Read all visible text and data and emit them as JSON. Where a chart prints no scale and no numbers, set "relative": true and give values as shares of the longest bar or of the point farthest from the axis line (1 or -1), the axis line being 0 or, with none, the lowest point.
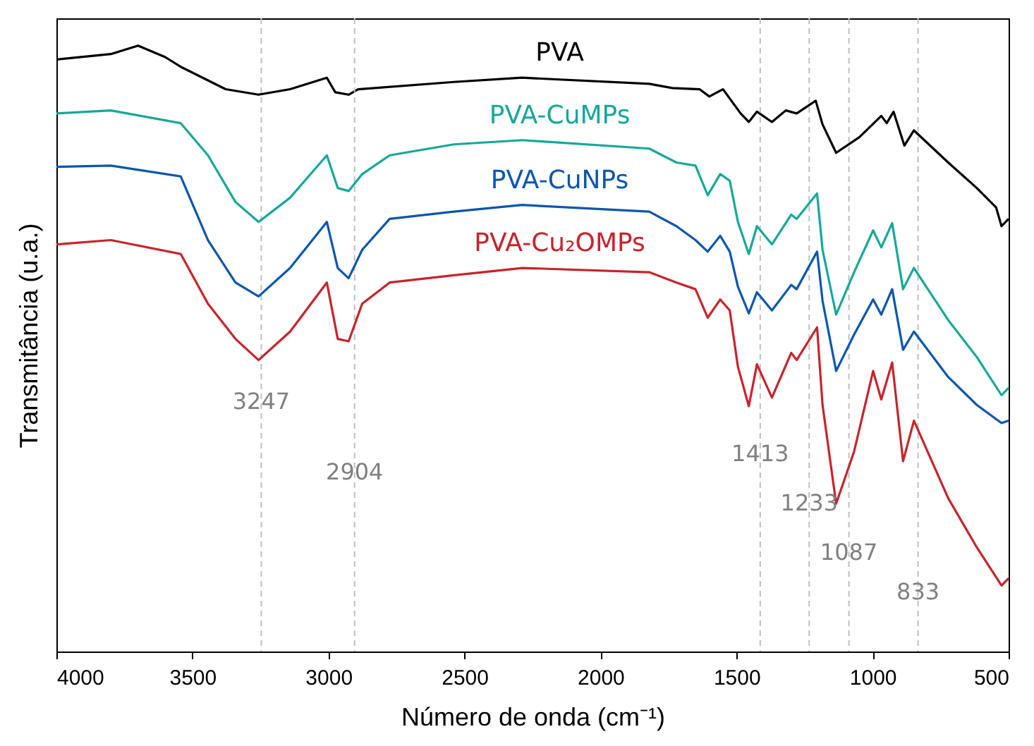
{
  "chart_data": {
    "type": "line",
    "xlabel": "Número de onda (cm⁻¹)",
    "ylabel": "Transmitância (u.a.)",
    "relative": true,
    "xlim": [
      4000,
      500
    ],
    "xticks": [
      4000,
      3500,
      3000,
      2500,
      2000,
      1500,
      1000,
      500
    ],
    "line_style": "solid",
    "marker": "none",
    "series": [
      {
        "name": "PVA",
        "color": "#000000",
        "x": [
          4000,
          3800,
          3700,
          3600,
          3543,
          3378,
          3257,
          3141,
          3006,
          2975,
          2926,
          2891,
          2539,
          2288,
          1821,
          1736,
          1636,
          1600,
          1550,
          1485,
          1455,
          1425,
          1370,
          1319,
          1279,
          1209,
          1184,
          1134,
          1048,
          968,
          948,
          923,
          883,
          848,
          722,
          617,
          546,
          526,
          500
        ],
        "values": [
          0.977,
          0.986,
          1.0,
          0.981,
          0.965,
          0.928,
          0.919,
          0.928,
          0.947,
          0.923,
          0.919,
          0.928,
          0.94,
          0.947,
          0.937,
          0.93,
          0.928,
          0.916,
          0.928,
          0.888,
          0.874,
          0.891,
          0.874,
          0.893,
          0.888,
          0.909,
          0.87,
          0.823,
          0.849,
          0.884,
          0.872,
          0.891,
          0.835,
          0.86,
          0.807,
          0.765,
          0.733,
          0.702,
          0.714
        ]
      },
      {
        "name": "PVA-CuMPs",
        "color": "#14a89a",
        "x": [
          4000,
          3800,
          3543,
          3443,
          3342,
          3257,
          3141,
          3006,
          2966,
          2926,
          2876,
          2775,
          2539,
          2288,
          1821,
          1721,
          1651,
          1606,
          1560,
          1525,
          1495,
          1455,
          1425,
          1370,
          1299,
          1279,
          1204,
          1184,
          1134,
          1068,
          998,
          968,
          928,
          888,
          848,
          722,
          617,
          526,
          500
        ],
        "values": [
          0.888,
          0.893,
          0.872,
          0.819,
          0.742,
          0.709,
          0.749,
          0.819,
          0.765,
          0.76,
          0.788,
          0.819,
          0.837,
          0.844,
          0.83,
          0.807,
          0.802,
          0.753,
          0.788,
          0.777,
          0.709,
          0.656,
          0.702,
          0.672,
          0.721,
          0.714,
          0.756,
          0.663,
          0.556,
          0.626,
          0.695,
          0.667,
          0.707,
          0.598,
          0.633,
          0.547,
          0.486,
          0.423,
          0.435
        ]
      },
      {
        "name": "PVA-CuNPs",
        "color": "#0a56b0",
        "x": [
          4000,
          3800,
          3543,
          3443,
          3342,
          3257,
          3141,
          3006,
          2966,
          2926,
          2876,
          2775,
          2539,
          2288,
          1821,
          1721,
          1651,
          1606,
          1560,
          1525,
          1495,
          1455,
          1425,
          1370,
          1299,
          1279,
          1204,
          1184,
          1134,
          1068,
          998,
          968,
          928,
          888,
          848,
          722,
          617,
          526,
          500
        ],
        "values": [
          0.8,
          0.802,
          0.784,
          0.679,
          0.609,
          0.586,
          0.633,
          0.709,
          0.633,
          0.616,
          0.663,
          0.714,
          0.726,
          0.737,
          0.726,
          0.702,
          0.679,
          0.66,
          0.686,
          0.66,
          0.602,
          0.558,
          0.593,
          0.563,
          0.605,
          0.598,
          0.66,
          0.579,
          0.463,
          0.523,
          0.581,
          0.556,
          0.598,
          0.498,
          0.528,
          0.453,
          0.407,
          0.377,
          0.381
        ]
      },
      {
        "name": "PVA-Cu₂OMPs",
        "color": "#c8232a",
        "x": [
          4000,
          3800,
          3543,
          3443,
          3342,
          3257,
          3141,
          3006,
          2966,
          2926,
          2876,
          2775,
          2539,
          2288,
          1821,
          1721,
          1651,
          1606,
          1560,
          1525,
          1495,
          1455,
          1425,
          1370,
          1299,
          1279,
          1204,
          1184,
          1134,
          1068,
          998,
          968,
          928,
          888,
          848,
          722,
          617,
          526,
          500
        ],
        "values": [
          0.672,
          0.679,
          0.656,
          0.574,
          0.516,
          0.481,
          0.528,
          0.609,
          0.516,
          0.512,
          0.574,
          0.609,
          0.621,
          0.633,
          0.626,
          0.609,
          0.598,
          0.551,
          0.581,
          0.563,
          0.47,
          0.405,
          0.474,
          0.419,
          0.493,
          0.481,
          0.535,
          0.407,
          0.244,
          0.33,
          0.463,
          0.416,
          0.477,
          0.314,
          0.381,
          0.253,
          0.172,
          0.109,
          0.121
        ]
      }
    ],
    "ref_lines": [
      {
        "axis": "x",
        "value": 3247,
        "label": "3247",
        "color": "#bfbfbf",
        "line_style": "dashed"
      },
      {
        "axis": "x",
        "value": 2904,
        "label": "2904",
        "color": "#bfbfbf",
        "line_style": "dashed"
      },
      {
        "axis": "x",
        "value": 1413,
        "label": "1413",
        "color": "#bfbfbf",
        "line_style": "dashed"
      },
      {
        "axis": "x",
        "value": 1233,
        "label": "1233",
        "color": "#bfbfbf",
        "line_style": "dashed"
      },
      {
        "axis": "x",
        "value": 1087,
        "label": "1087",
        "color": "#bfbfbf",
        "line_style": "dashed"
      },
      {
        "axis": "x",
        "value": 833,
        "label": "833",
        "color": "#bfbfbf",
        "line_style": "dashed"
      }
    ]
  }
}
